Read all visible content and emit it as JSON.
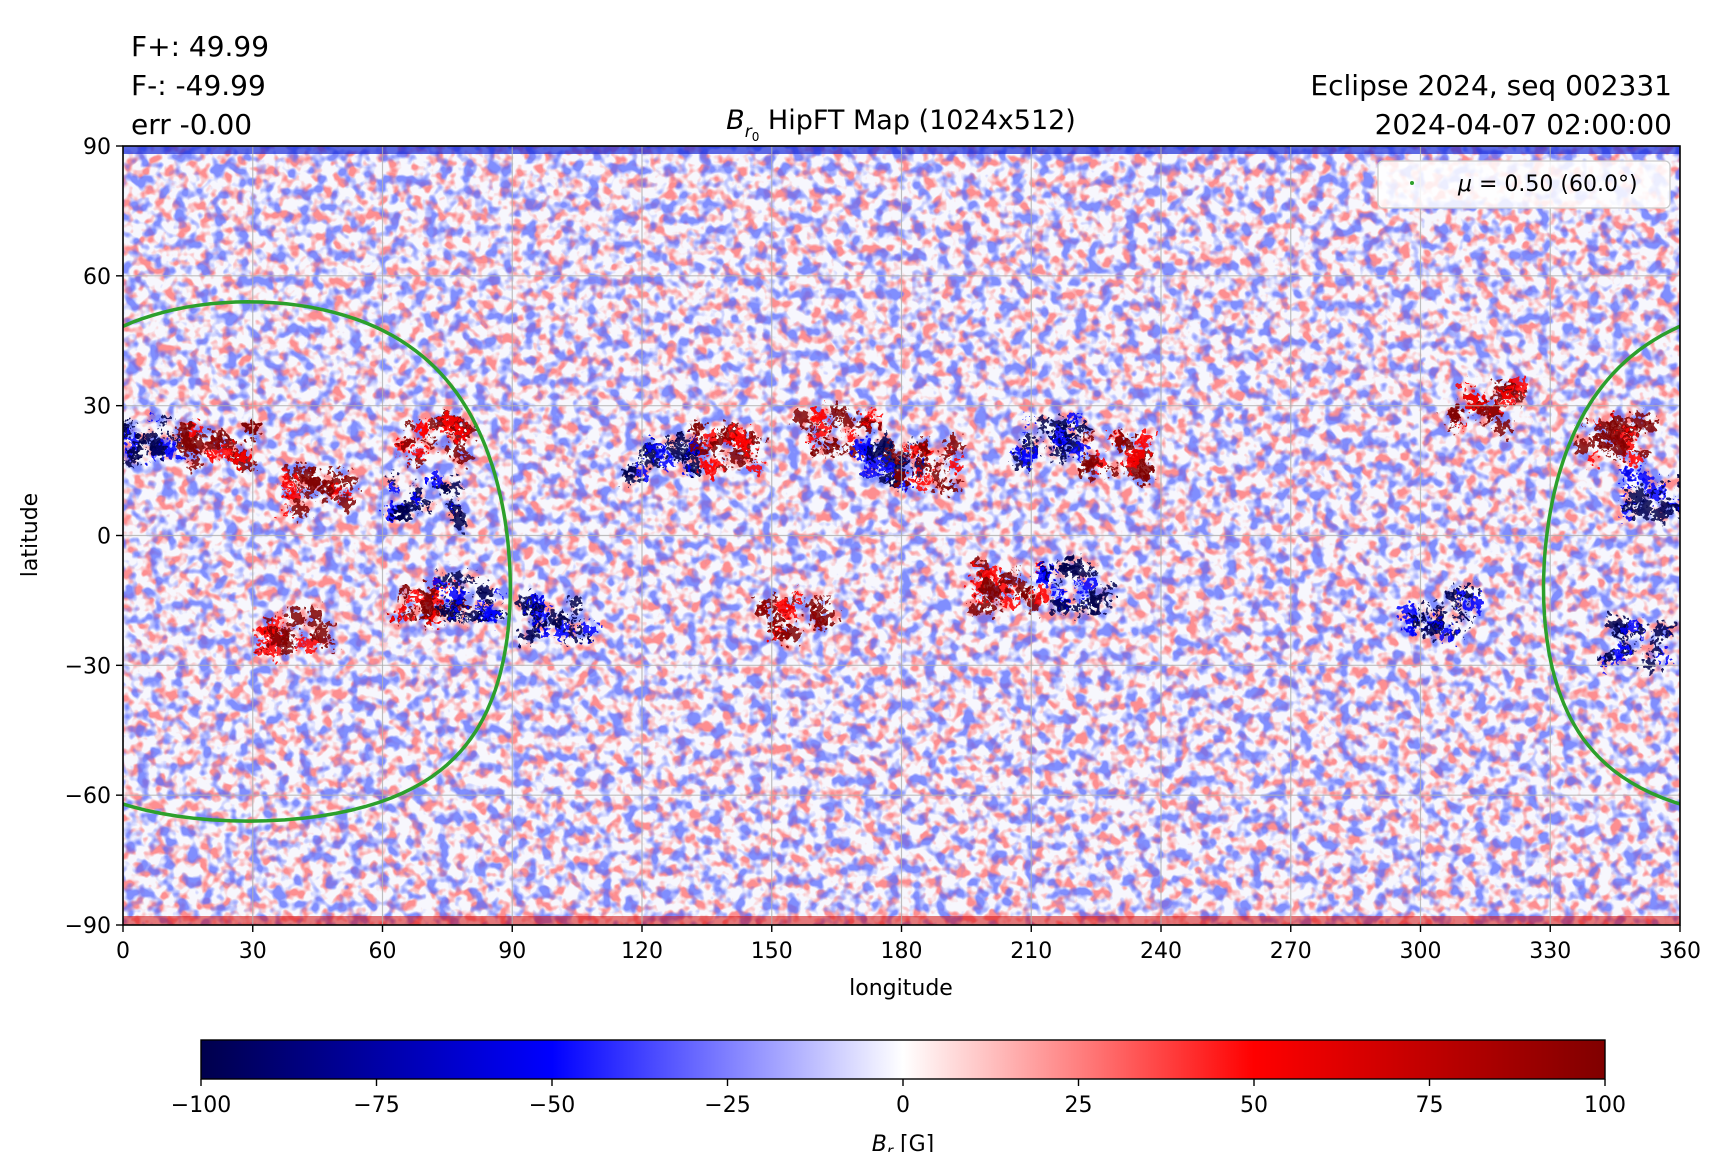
{
  "header": {
    "flux_pos": "F+: 49.99",
    "flux_neg": "F-: -49.99",
    "err": "err -0.00",
    "source": "Eclipse 2024, seq 002331",
    "datetime": "2024-04-07 02:00:00"
  },
  "chart_data": {
    "type": "heatmap",
    "title_sym": "B",
    "title_sub": "r",
    "title_subsub": "0",
    "title_rest": " HipFT Map (1024x512)",
    "xlabel": "longitude",
    "ylabel": "latitude",
    "xlim": [
      0,
      360
    ],
    "ylim": [
      -90,
      90
    ],
    "xticks": [
      0,
      30,
      60,
      90,
      120,
      150,
      180,
      210,
      240,
      270,
      300,
      330,
      360
    ],
    "yticks": [
      -90,
      -60,
      -30,
      0,
      30,
      60,
      90
    ],
    "xtick_labels": [
      "0",
      "30",
      "60",
      "90",
      "120",
      "150",
      "180",
      "210",
      "240",
      "270",
      "300",
      "330",
      "360"
    ],
    "ytick_labels": [
      "−90",
      "−60",
      "−30",
      "0",
      "30",
      "60",
      "90"
    ],
    "grid": true,
    "legend": {
      "placement": "upper right",
      "label_sym": "μ",
      "label_rest": " = 0.50 (60.0°)",
      "color": "#2ca02c"
    },
    "contour": {
      "mu": 0.5,
      "angle_deg": 60.0,
      "center_lon": 29,
      "center_lat": -6,
      "radius_deg": 60
    },
    "colorbar": {
      "colormap": "seismic",
      "range": [
        -100,
        100
      ],
      "ticks": [
        -100,
        -75,
        -50,
        -25,
        0,
        25,
        50,
        75,
        100
      ],
      "tick_labels": [
        "−100",
        "−75",
        "−50",
        "−25",
        "0",
        "25",
        "50",
        "75",
        "100"
      ],
      "label_sym": "B",
      "label_sub": "r",
      "label_rest": " [G]"
    },
    "colors": {
      "negative_max": "#00004c",
      "negative": "#0000ff",
      "zero": "#ffffff",
      "positive": "#ff0000",
      "positive_max": "#800000",
      "contour": "#2ca02c"
    },
    "active_regions": [
      {
        "lon": 5,
        "lat": 22,
        "polarity": "negative"
      },
      {
        "lon": 22,
        "lat": 20,
        "polarity": "positive"
      },
      {
        "lon": 45,
        "lat": 10,
        "polarity": "positive"
      },
      {
        "lon": 70,
        "lat": 8,
        "polarity": "negative"
      },
      {
        "lon": 72,
        "lat": 22,
        "polarity": "positive"
      },
      {
        "lon": 40,
        "lat": -22,
        "polarity": "positive"
      },
      {
        "lon": 70,
        "lat": -15,
        "polarity": "positive"
      },
      {
        "lon": 80,
        "lat": -15,
        "polarity": "negative"
      },
      {
        "lon": 100,
        "lat": -20,
        "polarity": "negative"
      },
      {
        "lon": 125,
        "lat": 18,
        "polarity": "negative"
      },
      {
        "lon": 140,
        "lat": 20,
        "polarity": "positive"
      },
      {
        "lon": 155,
        "lat": -18,
        "polarity": "positive"
      },
      {
        "lon": 165,
        "lat": 24,
        "polarity": "positive"
      },
      {
        "lon": 178,
        "lat": 17,
        "polarity": "negative"
      },
      {
        "lon": 185,
        "lat": 16,
        "polarity": "positive"
      },
      {
        "lon": 205,
        "lat": -12,
        "polarity": "positive"
      },
      {
        "lon": 215,
        "lat": 22,
        "polarity": "negative"
      },
      {
        "lon": 220,
        "lat": -12,
        "polarity": "negative"
      },
      {
        "lon": 230,
        "lat": 18,
        "polarity": "positive"
      },
      {
        "lon": 305,
        "lat": -18,
        "polarity": "negative"
      },
      {
        "lon": 315,
        "lat": 30,
        "polarity": "positive"
      },
      {
        "lon": 345,
        "lat": 22,
        "polarity": "positive"
      },
      {
        "lon": 355,
        "lat": 10,
        "polarity": "negative"
      },
      {
        "lon": 350,
        "lat": -25,
        "polarity": "negative"
      }
    ]
  }
}
